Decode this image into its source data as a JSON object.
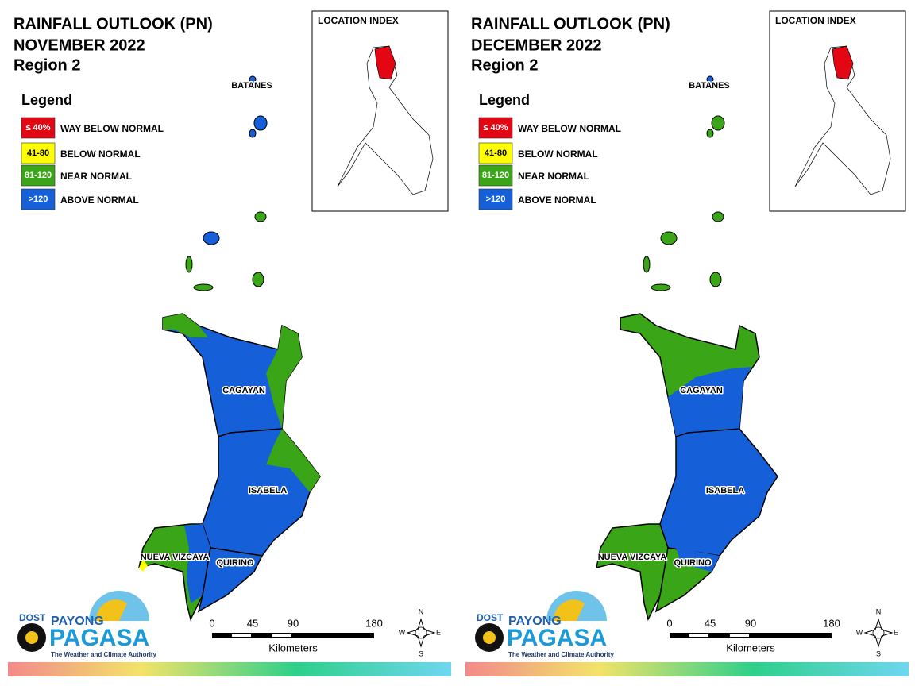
{
  "panels": [
    {
      "title_lines": [
        "RAINFALL OUTLOOK (PN)",
        "NOVEMBER 2022",
        "Region 2"
      ],
      "inset_title": "LOCATION INDEX",
      "legend": {
        "title": "Legend",
        "items": [
          {
            "swatch": "≤ 40%",
            "label": "WAY BELOW NORMAL",
            "color": "#e30613"
          },
          {
            "swatch": "41-80",
            "label": "BELOW NORMAL",
            "color": "#ffff00"
          },
          {
            "swatch": "81-120",
            "label": "NEAR NORMAL",
            "color": "#3aa517"
          },
          {
            "swatch": ">120",
            "label": "ABOVE NORMAL",
            "color": "#1560d8"
          }
        ]
      },
      "regions": [
        "BATANES",
        "CAGAYAN",
        "ISABELA",
        "NUEVA VIZCAYA",
        "QUIRINO"
      ],
      "scale": {
        "ticks": [
          0,
          45,
          90,
          180
        ],
        "unit": "Kilometers"
      },
      "compass": [
        "N",
        "E",
        "S",
        "W"
      ],
      "logo": {
        "dost": "DOST",
        "payong": "PAYONG",
        "pagasa": "PAGASA",
        "tagline": "The Weather and Climate Authority"
      }
    },
    {
      "title_lines": [
        "RAINFALL OUTLOOK (PN)",
        "DECEMBER 2022",
        "Region 2"
      ],
      "inset_title": "LOCATION INDEX",
      "legend": {
        "title": "Legend",
        "items": [
          {
            "swatch": "≤ 40%",
            "label": "WAY BELOW NORMAL",
            "color": "#e30613"
          },
          {
            "swatch": "41-80",
            "label": "BELOW NORMAL",
            "color": "#ffff00"
          },
          {
            "swatch": "81-120",
            "label": "NEAR NORMAL",
            "color": "#3aa517"
          },
          {
            "swatch": ">120",
            "label": "ABOVE NORMAL",
            "color": "#1560d8"
          }
        ]
      },
      "regions": [
        "BATANES",
        "CAGAYAN",
        "ISABELA",
        "NUEVA VIZCAYA",
        "QUIRINO"
      ],
      "scale": {
        "ticks": [
          0,
          45,
          90,
          180
        ],
        "unit": "Kilometers"
      },
      "compass": [
        "N",
        "E",
        "S",
        "W"
      ],
      "logo": {
        "dost": "DOST",
        "payong": "PAYONG",
        "pagasa": "PAGASA",
        "tagline": "The Weather and Climate Authority"
      }
    }
  ]
}
